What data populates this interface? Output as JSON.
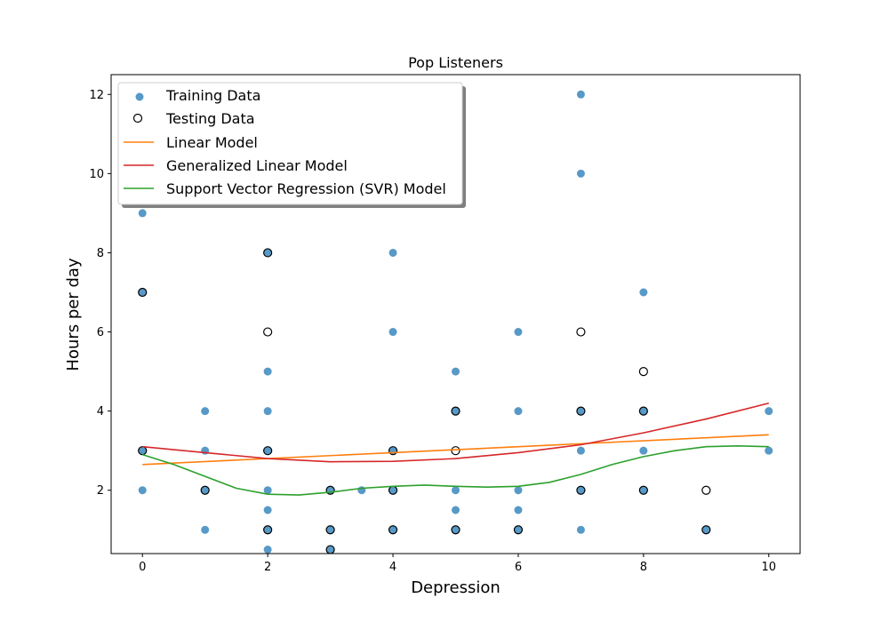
{
  "chart_data": {
    "type": "scatter",
    "title": "Pop Listeners",
    "xlabel": "Depression",
    "ylabel": "Hours per day",
    "xlim": [
      -0.5,
      10.5
    ],
    "ylim": [
      0.4,
      12.5
    ],
    "x_ticks": [
      0,
      2,
      4,
      6,
      8,
      10
    ],
    "y_ticks": [
      2,
      4,
      6,
      8,
      10,
      12
    ],
    "grid": false,
    "legend_position": "top-left",
    "legend": [
      {
        "label": "Training Data",
        "kind": "marker-filled"
      },
      {
        "label": "Testing Data",
        "kind": "marker-open"
      },
      {
        "label": "Linear Model",
        "kind": "line"
      },
      {
        "label": "Generalized Linear Model",
        "kind": "line"
      },
      {
        "label": "Support Vector Regression (SVR) Model",
        "kind": "line"
      }
    ],
    "colors": {
      "training": "#1f77b4",
      "testing_edge": "#000000",
      "linear": "#ff7f0e",
      "glm": "#d62728",
      "svr": "#2ca02c"
    },
    "training_points": [
      [
        0,
        9
      ],
      [
        0,
        7
      ],
      [
        0,
        3
      ],
      [
        0,
        2
      ],
      [
        1,
        4
      ],
      [
        1,
        3
      ],
      [
        1,
        2
      ],
      [
        1,
        1
      ],
      [
        2,
        8
      ],
      [
        2,
        5
      ],
      [
        2,
        4
      ],
      [
        2,
        3
      ],
      [
        2,
        2
      ],
      [
        2,
        1.5
      ],
      [
        2,
        1
      ],
      [
        2,
        0.5
      ],
      [
        3,
        2
      ],
      [
        3,
        1
      ],
      [
        3,
        0.5
      ],
      [
        3.5,
        2
      ],
      [
        4,
        8
      ],
      [
        4,
        6
      ],
      [
        4,
        3
      ],
      [
        4,
        2
      ],
      [
        4,
        1
      ],
      [
        5,
        5
      ],
      [
        5,
        4
      ],
      [
        5,
        2
      ],
      [
        5,
        1.5
      ],
      [
        5,
        1
      ],
      [
        6,
        6
      ],
      [
        6,
        4
      ],
      [
        6,
        2
      ],
      [
        6,
        1.5
      ],
      [
        6,
        1
      ],
      [
        7,
        12
      ],
      [
        7,
        10
      ],
      [
        7,
        4
      ],
      [
        7,
        3
      ],
      [
        7,
        2
      ],
      [
        7,
        1
      ],
      [
        8,
        7
      ],
      [
        8,
        4
      ],
      [
        8,
        3
      ],
      [
        8,
        2
      ],
      [
        9,
        1
      ],
      [
        10,
        4
      ],
      [
        10,
        3
      ]
    ],
    "testing_points": [
      [
        0,
        7
      ],
      [
        0,
        3
      ],
      [
        1,
        2
      ],
      [
        2,
        8
      ],
      [
        2,
        6
      ],
      [
        2,
        3
      ],
      [
        2,
        1
      ],
      [
        3,
        2
      ],
      [
        3,
        1
      ],
      [
        3,
        0.5
      ],
      [
        4,
        3
      ],
      [
        4,
        2
      ],
      [
        4,
        1
      ],
      [
        5,
        4
      ],
      [
        5,
        3
      ],
      [
        5,
        1
      ],
      [
        6,
        1
      ],
      [
        7,
        6
      ],
      [
        7,
        4
      ],
      [
        7,
        2
      ],
      [
        8,
        5
      ],
      [
        8,
        4
      ],
      [
        8,
        2
      ],
      [
        9,
        2
      ],
      [
        9,
        1
      ]
    ],
    "series": [
      {
        "name": "Linear Model",
        "x": [
          0,
          10
        ],
        "y": [
          2.65,
          3.4
        ]
      },
      {
        "name": "Generalized Linear Model",
        "x": [
          0,
          1,
          2,
          3,
          4,
          5,
          6,
          7,
          8,
          9,
          10
        ],
        "y": [
          3.1,
          2.95,
          2.8,
          2.72,
          2.73,
          2.8,
          2.95,
          3.15,
          3.45,
          3.8,
          4.2
        ]
      },
      {
        "name": "Support Vector Regression (SVR) Model",
        "x": [
          0,
          0.5,
          1,
          1.5,
          2,
          2.5,
          3,
          3.5,
          4,
          4.5,
          5,
          5.5,
          6,
          6.5,
          7,
          7.5,
          8,
          8.5,
          9,
          9.5,
          10
        ],
        "y": [
          2.9,
          2.65,
          2.35,
          2.05,
          1.9,
          1.88,
          1.95,
          2.05,
          2.1,
          2.13,
          2.1,
          2.08,
          2.1,
          2.2,
          2.4,
          2.65,
          2.85,
          3.0,
          3.1,
          3.12,
          3.1
        ]
      }
    ]
  }
}
